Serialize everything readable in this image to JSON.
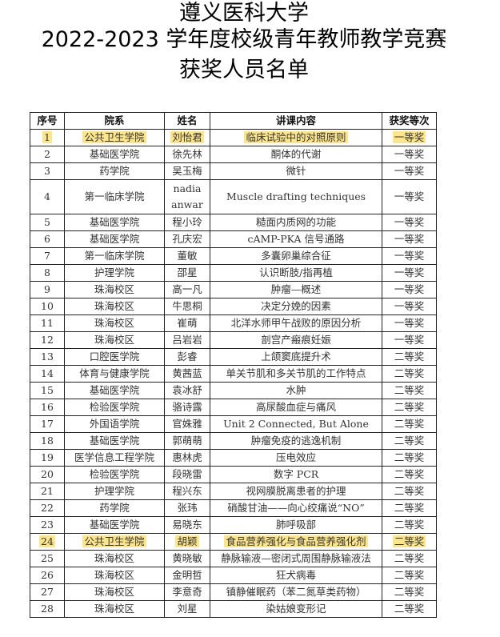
{
  "title": [
    "遵义医科大学",
    "2022-2023 学年度校级青年教师教学竞赛",
    "获奖人员名单"
  ],
  "highlight_color": "#fde58c",
  "table": {
    "headers": [
      "序号",
      "院系",
      "姓名",
      "讲课内容",
      "获奖等次"
    ],
    "rows": [
      [
        "1",
        "公共卫生学院",
        "刘怡君",
        "临床试验中的对照原则",
        "一等奖"
      ],
      [
        "2",
        "基础医学院",
        "徐先林",
        "酮体的代谢",
        "一等奖"
      ],
      [
        "3",
        "药学院",
        "吴玉梅",
        "微针",
        "一等奖"
      ],
      [
        "4",
        "第一临床学院",
        "nadia anwar",
        "Muscle drafting techniques",
        "一等奖"
      ],
      [
        "5",
        "基础医学院",
        "程小玲",
        "糙面内质网的功能",
        "一等奖"
      ],
      [
        "6",
        "基础医学院",
        "孔庆宏",
        "cAMP-PKA 信号通路",
        "一等奖"
      ],
      [
        "7",
        "第一临床学院",
        "董敏",
        "多囊卵巢综合征",
        "一等奖"
      ],
      [
        "8",
        "护理学院",
        "邵星",
        "认识断肢/指再植",
        "一等奖"
      ],
      [
        "9",
        "珠海校区",
        "高一凡",
        "肿瘤—概述",
        "一等奖"
      ],
      [
        "10",
        "珠海校区",
        "牛思桐",
        "决定分娩的因素",
        "一等奖"
      ],
      [
        "11",
        "珠海校区",
        "崔萌",
        "北洋水师甲午战败的原因分析",
        "一等奖"
      ],
      [
        "12",
        "珠海校区",
        "吕岩岩",
        "剖宫产瘢痕妊娠",
        "一等奖"
      ],
      [
        "13",
        "口腔医学院",
        "彭睿",
        "上颌窦底提升术",
        "二等奖"
      ],
      [
        "14",
        "体育与健康学院",
        "黄茜蓝",
        "单关节肌和多关节肌的工作特点",
        "二等奖"
      ],
      [
        "15",
        "基础医学院",
        "袁冰舒",
        "水肿",
        "二等奖"
      ],
      [
        "16",
        "检验医学院",
        "骆诗露",
        "高尿酸血症与痛风",
        "二等奖"
      ],
      [
        "17",
        "外国语学院",
        "官姝雅",
        "Unit 2 Connected, But Alone",
        "二等奖"
      ],
      [
        "18",
        "基础医学院",
        "郭萌萌",
        "肿瘤免疫的逃逸机制",
        "二等奖"
      ],
      [
        "19",
        "医学信息工程学院",
        "惠林虎",
        "压电效应",
        "二等奖"
      ],
      [
        "20",
        "检验医学院",
        "段晓雷",
        "数字 PCR",
        "二等奖"
      ],
      [
        "21",
        "护理学院",
        "程兴东",
        "视网膜脱离患者的护理",
        "二等奖"
      ],
      [
        "22",
        "药学院",
        "张玮",
        "硝酸甘油——向心绞痛说“NO”",
        "二等奖"
      ],
      [
        "23",
        "基础医学院",
        "易晓东",
        "肺呼吸部",
        "二等奖"
      ],
      [
        "24",
        "公共卫生学院",
        "胡颖",
        "食品营养强化与食品营养强化剂",
        "二等奖"
      ],
      [
        "25",
        "珠海校区",
        "黄晓敏",
        "静脉输液—密闭式周围静脉输液法",
        "二等奖"
      ],
      [
        "26",
        "珠海校区",
        "金明哲",
        "狂犬病毒",
        "二等奖"
      ],
      [
        "27",
        "珠海校区",
        "李意奇",
        "镇静催眠药（苯二氮草类药物）",
        "二等奖"
      ],
      [
        "28",
        "珠海校区",
        "刘星",
        "染姑娘变形记",
        "二等奖"
      ]
    ],
    "highlighted_rows": [
      1,
      24
    ]
  }
}
